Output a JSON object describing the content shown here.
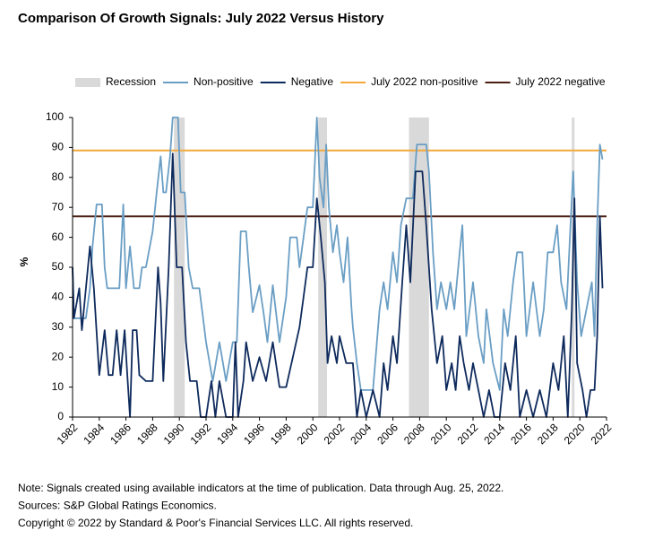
{
  "chart_data": {
    "type": "line",
    "title": "Comparison Of Growth Signals: July 2022 Versus History",
    "y_label": "%",
    "xlim": [
      1982,
      2022
    ],
    "xticks": [
      1982,
      1984,
      1986,
      1988,
      1990,
      1992,
      1994,
      1996,
      1998,
      2000,
      2002,
      2004,
      2006,
      2008,
      2010,
      2012,
      2014,
      2016,
      2018,
      2020,
      2022
    ],
    "ylim": [
      0,
      100
    ],
    "yticks": [
      0,
      10,
      20,
      30,
      40,
      50,
      60,
      70,
      80,
      90,
      100
    ],
    "grid": false,
    "recession": {
      "name": "Recession",
      "color": "#d9d9d9",
      "periods": [
        [
          1989.6,
          1990.4
        ],
        [
          2000.4,
          2001.06
        ],
        [
          2007.2,
          2008.7
        ],
        [
          2019.4,
          2019.6
        ]
      ]
    },
    "series": [
      {
        "name": "Non-positive",
        "color": "#6a9ec4",
        "x": [
          1982,
          1982.1,
          1983,
          1983.3,
          1983.5,
          1983.8,
          1984.2,
          1984.4,
          1984.6,
          1985,
          1985.5,
          1985.8,
          1986,
          1986.3,
          1986.6,
          1987,
          1987.2,
          1987.5,
          1988,
          1988.3,
          1988.6,
          1988.8,
          1989,
          1989.3,
          1989.5,
          1989.9,
          1990.1,
          1990.4,
          1990.7,
          1991,
          1991.5,
          1992,
          1992.5,
          1993,
          1993.5,
          1994,
          1994.3,
          1994.6,
          1995,
          1995.2,
          1995.5,
          1996,
          1996.3,
          1996.6,
          1997,
          1997.5,
          1998,
          1998.3,
          1998.8,
          1999,
          1999.3,
          1999.6,
          2000,
          2000.3,
          2000.5,
          2000.8,
          2001,
          2001.2,
          2001.5,
          2001.8,
          2002,
          2002.3,
          2002.6,
          2002.9,
          2003,
          2003.3,
          2003.6,
          2004,
          2004.5,
          2005,
          2005.3,
          2005.6,
          2006,
          2006.3,
          2006.6,
          2007,
          2007.5,
          2007.8,
          2008.2,
          2008.5,
          2008.7,
          2009,
          2009.3,
          2009.6,
          2010,
          2010.3,
          2010.6,
          2011,
          2011.2,
          2011.5,
          2012,
          2012.4,
          2012.8,
          2013,
          2013.5,
          2014,
          2014.3,
          2014.6,
          2015,
          2015.3,
          2015.7,
          2016,
          2016.5,
          2017,
          2017.3,
          2017.6,
          2018,
          2018.3,
          2018.6,
          2019,
          2019.3,
          2019.5,
          2019.8,
          2020.1,
          2020.5,
          2020.9,
          2021.1,
          2021.3,
          2021.5,
          2021.7
        ],
        "values": [
          50,
          33,
          33,
          43,
          57,
          71,
          71,
          50,
          43,
          43,
          43,
          71,
          43,
          57,
          43,
          43,
          50,
          50,
          62,
          75,
          87,
          75,
          75,
          87,
          100,
          100,
          75,
          75,
          50,
          43,
          43,
          25,
          12,
          25,
          12,
          25,
          25,
          62,
          62,
          50,
          35,
          44,
          35,
          25,
          44,
          25,
          40,
          60,
          60,
          50,
          60,
          70,
          70,
          100,
          80,
          70,
          91,
          70,
          55,
          64,
          55,
          45,
          60,
          36,
          30,
          18,
          9,
          9,
          9,
          36,
          45,
          36,
          55,
          45,
          64,
          73,
          73,
          91,
          91,
          91,
          82,
          55,
          36,
          45,
          36,
          45,
          36,
          55,
          64,
          27,
          45,
          27,
          18,
          36,
          18,
          9,
          36,
          27,
          45,
          55,
          55,
          27,
          45,
          27,
          36,
          55,
          55,
          64,
          45,
          36,
          64,
          82,
          45,
          27,
          36,
          45,
          27,
          64,
          91,
          86
        ]
      },
      {
        "name": "Negative",
        "color": "#0e2a5c",
        "x": [
          1982,
          1982.1,
          1982.5,
          1982.7,
          1983,
          1983.3,
          1983.6,
          1984,
          1984.4,
          1984.7,
          1985,
          1985.3,
          1985.6,
          1985.9,
          1986.1,
          1986.3,
          1986.5,
          1986.8,
          1987,
          1987.5,
          1988,
          1988.4,
          1988.6,
          1988.8,
          1989.2,
          1989.5,
          1989.8,
          1990.2,
          1990.5,
          1990.8,
          1991.3,
          1991.6,
          1992,
          1992.4,
          1992.7,
          1993,
          1993.5,
          1994,
          1994.2,
          1994.4,
          1994.8,
          1995,
          1995.5,
          1996,
          1996.5,
          1997,
          1997.5,
          1998,
          1998.5,
          1999,
          1999.3,
          1999.6,
          2000,
          2000.3,
          2000.6,
          2000.9,
          2001.1,
          2001.4,
          2001.8,
          2002,
          2002.5,
          2003,
          2003.3,
          2003.6,
          2004,
          2004.5,
          2005,
          2005.3,
          2005.6,
          2006,
          2006.3,
          2006.7,
          2007,
          2007.3,
          2007.7,
          2008.2,
          2008.5,
          2008.9,
          2009.3,
          2009.7,
          2010,
          2010.4,
          2010.7,
          2011,
          2011.3,
          2011.7,
          2012,
          2012.4,
          2012.8,
          2013.2,
          2013.6,
          2014,
          2014.4,
          2014.8,
          2015.2,
          2015.5,
          2016,
          2016.5,
          2017,
          2017.5,
          2018,
          2018.4,
          2018.8,
          2019.1,
          2019.4,
          2019.6,
          2019.8,
          2020.2,
          2020.5,
          2020.8,
          2021.1,
          2021.3,
          2021.5,
          2021.7
        ],
        "values": [
          50,
          33,
          43,
          29,
          43,
          57,
          43,
          14,
          29,
          14,
          14,
          29,
          14,
          29,
          14,
          0,
          29,
          29,
          14,
          12,
          12,
          50,
          38,
          12,
          50,
          88,
          50,
          50,
          25,
          12,
          12,
          0,
          0,
          12,
          0,
          12,
          0,
          0,
          25,
          0,
          12,
          25,
          12,
          20,
          12,
          25,
          10,
          10,
          20,
          30,
          40,
          50,
          50,
          73,
          60,
          45,
          18,
          27,
          18,
          27,
          18,
          18,
          0,
          9,
          0,
          9,
          0,
          18,
          9,
          27,
          18,
          45,
          64,
          45,
          82,
          82,
          64,
          36,
          18,
          27,
          9,
          18,
          9,
          27,
          18,
          9,
          18,
          9,
          0,
          9,
          0,
          0,
          18,
          9,
          27,
          0,
          9,
          0,
          9,
          0,
          18,
          9,
          27,
          0,
          36,
          73,
          18,
          9,
          0,
          9,
          9,
          27,
          67,
          43
        ]
      }
    ],
    "reference_lines": [
      {
        "name": "July 2022 non-positive",
        "color": "#f4a93a",
        "value": 89
      },
      {
        "name": "July 2022 negative",
        "color": "#4a1e12",
        "value": 67
      }
    ],
    "notes": [
      "Note: Signals created using available indicators at the time of publication. Data through Aug. 25, 2022.",
      "Sources: S&P Global Ratings Economics.",
      "Copyright © 2022 by Standard & Poor's Financial Services LLC. All rights reserved."
    ]
  }
}
